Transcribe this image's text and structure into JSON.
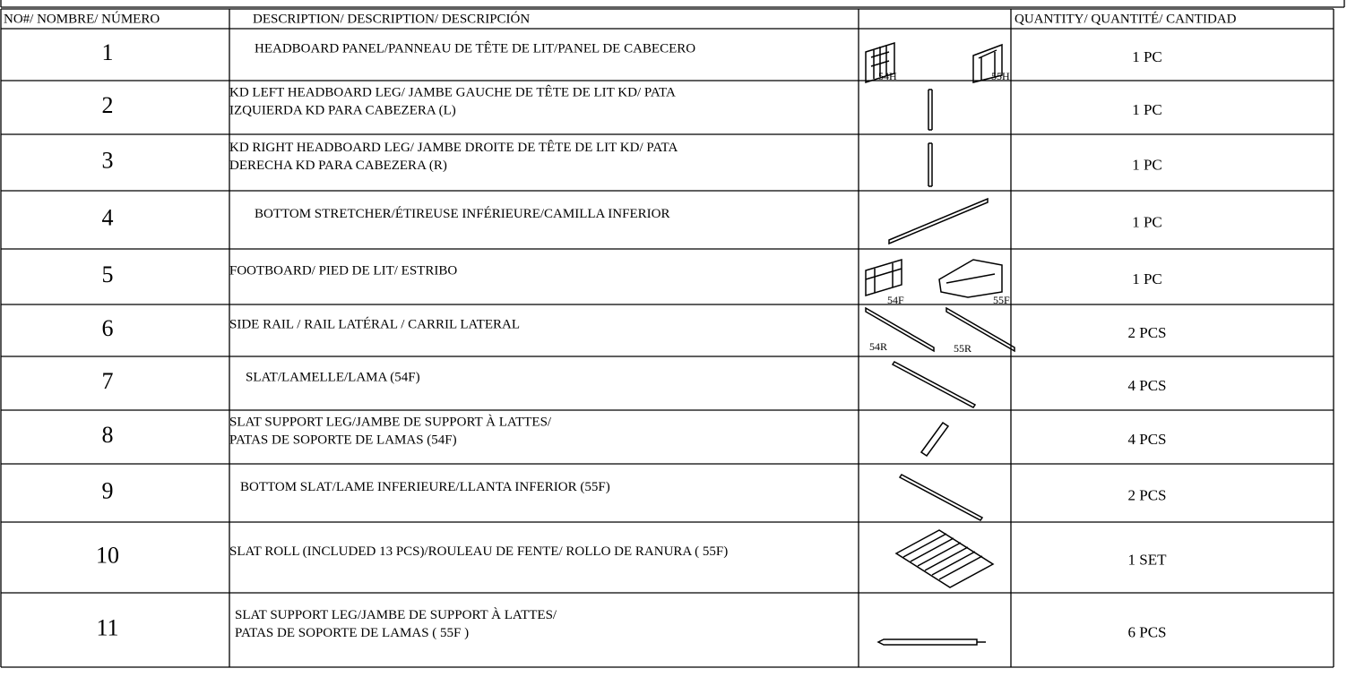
{
  "table": {
    "header": {
      "number": "NO#/ NOMBRE/ NÚMERO",
      "description": "DESCRIPTION/ DESCRIPTION/ DESCRIPCIÓN",
      "quantity": "QUANTITY/ QUANTITÉ/ CANTIDAD"
    },
    "rows": [
      {
        "number": 1,
        "description": [
          "HEADBOARD PANEL/PANNEAU DE TÊTE DE LIT/PANEL DE CABECERO"
        ],
        "part_labels": [
          "54H",
          "55H"
        ],
        "quantity": "1 PC"
      },
      {
        "number": 2,
        "description": [
          "KD LEFT HEADBOARD LEG/ JAMBE GAUCHE DE TÊTE DE LIT KD/ PATA",
          "IZQUIERDA KD PARA CABEZERA (L)"
        ],
        "quantity": "1 PC"
      },
      {
        "number": 3,
        "description": [
          "KD RIGHT HEADBOARD LEG/ JAMBE DROITE DE TÊTE DE LIT KD/ PATA",
          "DERECHA KD PARA CABEZERA (R)"
        ],
        "quantity": "1 PC"
      },
      {
        "number": 4,
        "description": [
          "BOTTOM STRETCHER/ÉTIREUSE INFÉRIEURE/CAMILLA INFERIOR"
        ],
        "quantity": "1 PC"
      },
      {
        "number": 5,
        "description": [
          "FOOTBOARD/ PIED DE LIT/ ESTRIBO"
        ],
        "part_labels": [
          "54F",
          "55F"
        ],
        "quantity": "1 PC"
      },
      {
        "number": 6,
        "description": [
          "SIDE RAIL / RAIL LATÉRAL / CARRIL LATERAL"
        ],
        "part_labels": [
          "54R",
          "55R"
        ],
        "quantity": "2 PCS"
      },
      {
        "number": 7,
        "description": [
          "SLAT/LAMELLE/LAMA (54F)"
        ],
        "quantity": "4 PCS"
      },
      {
        "number": 8,
        "description": [
          "SLAT SUPPORT LEG/JAMBE DE SUPPORT À LATTES/",
          "PATAS DE SOPORTE DE LAMAS (54F)"
        ],
        "quantity": "4 PCS"
      },
      {
        "number": 9,
        "description": [
          "BOTTOM SLAT/LAME INFERIEURE/LLANTA INFERIOR (55F)"
        ],
        "quantity": "2 PCS"
      },
      {
        "number": 10,
        "description": [
          "SLAT ROLL (INCLUDED 13 PCS)/ROULEAU DE FENTE/ ROLLO DE RANURA ( 55F)"
        ],
        "quantity": "1 SET"
      },
      {
        "number": 11,
        "description": [
          "SLAT SUPPORT LEG/JAMBE DE SUPPORT À LATTES/",
          "PATAS DE SOPORTE DE LAMAS ( 55F )"
        ],
        "quantity": "6 PCS"
      }
    ]
  }
}
